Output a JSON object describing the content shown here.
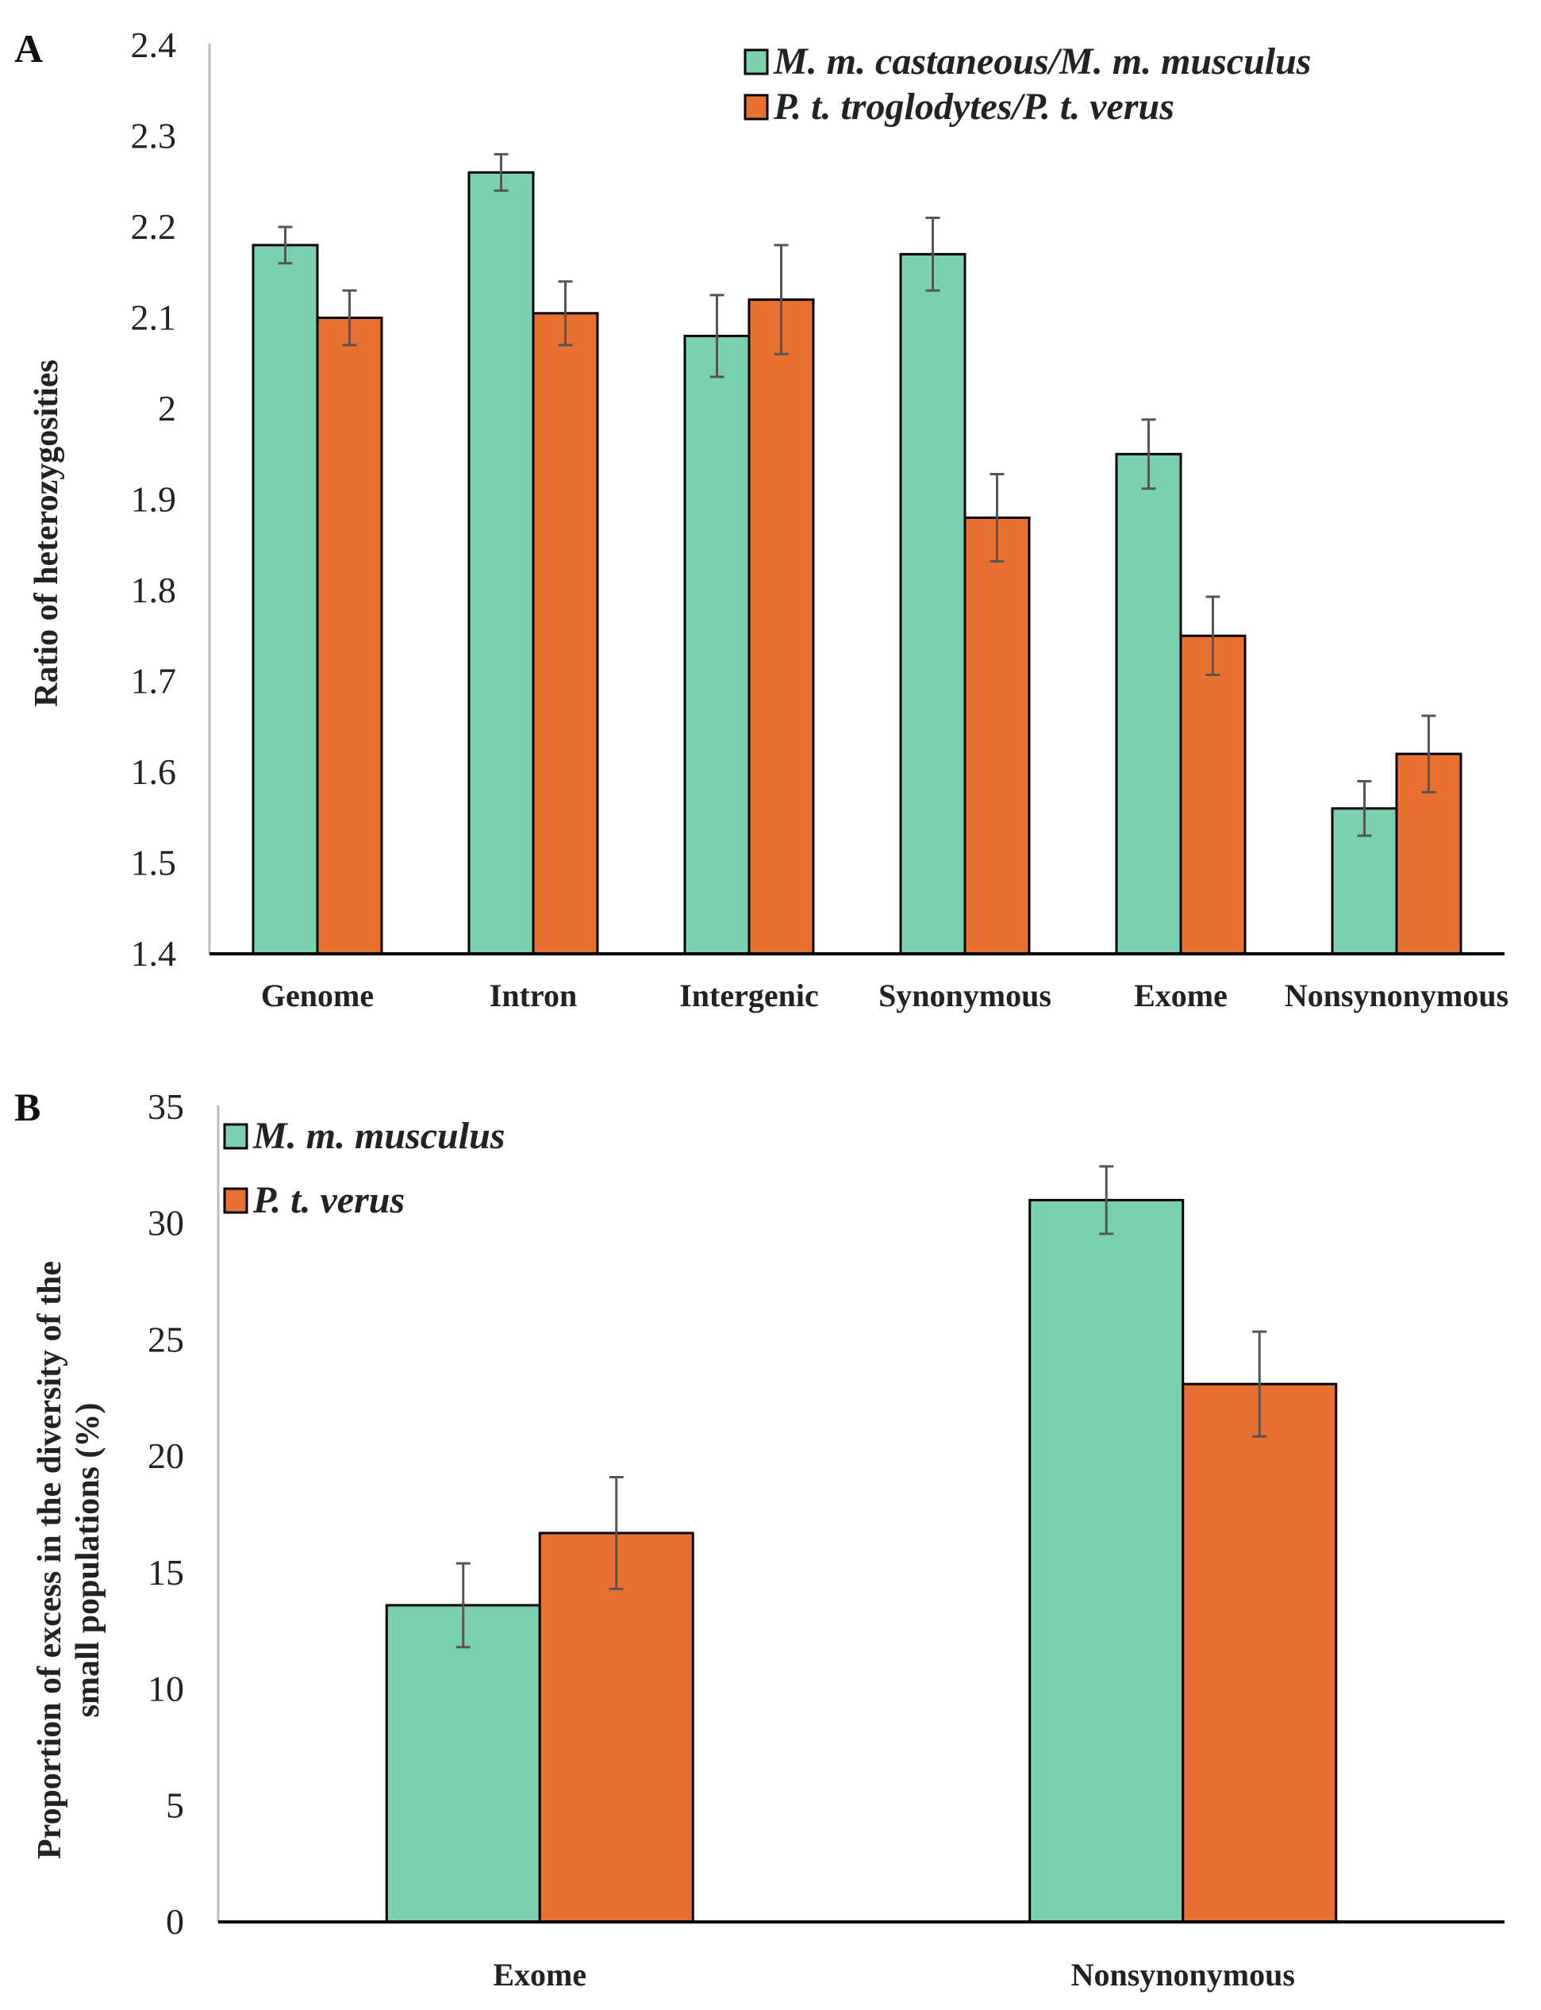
{
  "chart_data": [
    {
      "type": "bar",
      "panel_label": "A",
      "title": "",
      "xlabel": "",
      "ylabel": "Ratio of heterozygosities",
      "ylim": [
        1.4,
        2.4
      ],
      "yticks": [
        "1.4",
        "1.5",
        "1.6",
        "1.7",
        "1.8",
        "1.9",
        "2",
        "2.1",
        "2.2",
        "2.3",
        "2.4"
      ],
      "categories": [
        "Genome",
        "Intron",
        "Intergenic",
        "Synonymous",
        "Exome",
        "Nonsynonymous"
      ],
      "legend_position": "top-right",
      "series": [
        {
          "name": "M. m. castaneous/M. m. musculus",
          "color": "#79D2AD",
          "values": [
            2.18,
            2.26,
            2.08,
            2.17,
            1.95,
            1.56
          ],
          "errors": [
            0.02,
            0.02,
            0.045,
            0.04,
            0.038,
            0.03
          ]
        },
        {
          "name": "P. t. troglodytes/P. t. verus",
          "color": "#E87033",
          "values": [
            2.1,
            2.105,
            2.12,
            1.88,
            1.75,
            1.62
          ],
          "errors": [
            0.03,
            0.035,
            0.06,
            0.048,
            0.043,
            0.042
          ]
        }
      ],
      "grid": false
    },
    {
      "type": "bar",
      "panel_label": "B",
      "title": "",
      "xlabel": "",
      "ylabel": [
        "Proportion of excess in the diversity of the",
        "small populations (%)"
      ],
      "ylim": [
        0,
        35
      ],
      "yticks": [
        "0",
        "5",
        "10",
        "15",
        "20",
        "25",
        "30",
        "35"
      ],
      "categories": [
        "Exome",
        "Nonsynonymous"
      ],
      "legend_position": "top-left",
      "series": [
        {
          "name": "M. m. musculus",
          "color": "#79D2AD",
          "values": [
            13.6,
            31.0
          ],
          "errors": [
            1.8,
            1.45
          ]
        },
        {
          "name": "P. t. verus",
          "color": "#E87033",
          "values": [
            16.7,
            23.1
          ],
          "errors": [
            2.4,
            2.25
          ]
        }
      ],
      "grid": false
    }
  ]
}
